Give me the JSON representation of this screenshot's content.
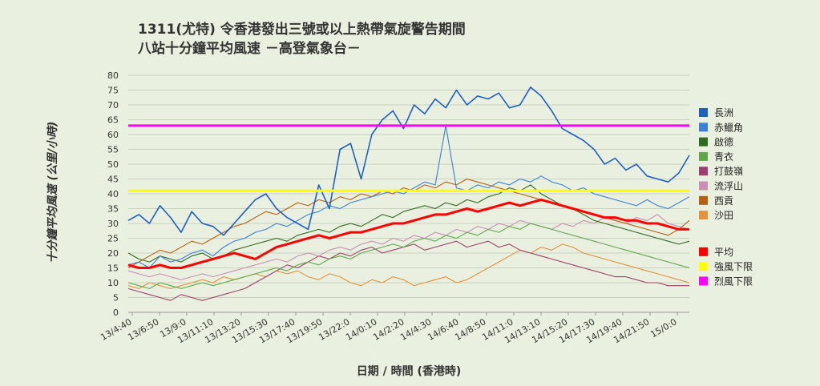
{
  "chart_data": {
    "type": "line",
    "title_line1": "1311(尤特)  令香港發出三號或以上熱帶氣旋警告期間",
    "title_line2": "八站十分鐘平均風速        －高登氣象台－",
    "xlabel": "日期 / 時間 (香港時)",
    "ylabel": "十分鐘平均風速 (公里/小時)",
    "ylim": [
      0,
      80
    ],
    "yticks": [
      0,
      5,
      10,
      15,
      20,
      25,
      30,
      35,
      40,
      45,
      50,
      55,
      60,
      65,
      70,
      75,
      80
    ],
    "grid": true,
    "legend_position": "right",
    "x_tick_labels": [
      "13/4:40",
      "13/6:50",
      "13/9:0",
      "13/11:10",
      "13/13:20",
      "13/15:30",
      "13/17:40",
      "13/19:50",
      "13/22:0",
      "14/0:10",
      "14/2:20",
      "14/4:30",
      "14/6:40",
      "14/8:50",
      "14/11:0",
      "14/13:10",
      "14/15:20",
      "14/17:30",
      "14/19:40",
      "14/21:50",
      "15/0:0"
    ],
    "series": [
      {
        "name": "長洲",
        "color": "#1f5fc4",
        "width": 1.6,
        "values": [
          31,
          33,
          30,
          36,
          32,
          27,
          34,
          30,
          29,
          26,
          30,
          34,
          38,
          40,
          35,
          32,
          30,
          28,
          43,
          35,
          55,
          57,
          45,
          60,
          65,
          68,
          62,
          70,
          67,
          72,
          69,
          75,
          70,
          73,
          72,
          74,
          69,
          70,
          76,
          73,
          68,
          62,
          60,
          58,
          55,
          50,
          52,
          48,
          50,
          46,
          45,
          44,
          47,
          53
        ]
      },
      {
        "name": "赤鱲角",
        "color": "#3a7fd8",
        "width": 1.1,
        "values": [
          16,
          17,
          15,
          19,
          17,
          18,
          20,
          21,
          19,
          22,
          24,
          25,
          27,
          28,
          30,
          29,
          31,
          33,
          34,
          36,
          35,
          37,
          38,
          39,
          40,
          41,
          40,
          42,
          44,
          43,
          63,
          42,
          41,
          43,
          42,
          44,
          43,
          45,
          44,
          46,
          44,
          43,
          41,
          42,
          40,
          39,
          38,
          37,
          36,
          38,
          36,
          35,
          37,
          39
        ]
      },
      {
        "name": "啟德",
        "color": "#2e6b1e",
        "width": 1.1,
        "values": [
          20,
          18,
          17,
          19,
          18,
          17,
          19,
          20,
          18,
          19,
          21,
          22,
          23,
          24,
          25,
          24,
          26,
          27,
          28,
          27,
          29,
          30,
          29,
          31,
          33,
          32,
          34,
          35,
          36,
          35,
          37,
          36,
          38,
          37,
          39,
          40,
          42,
          41,
          43,
          40,
          38,
          36,
          35,
          33,
          31,
          30,
          29,
          28,
          27,
          26,
          25,
          24,
          23,
          24
        ]
      },
      {
        "name": "青衣",
        "color": "#5fa84a",
        "width": 1.1,
        "values": [
          10,
          9,
          8,
          10,
          9,
          8,
          9,
          10,
          9,
          10,
          11,
          12,
          13,
          14,
          15,
          14,
          16,
          17,
          16,
          18,
          19,
          18,
          20,
          21,
          22,
          23,
          22,
          24,
          25,
          24,
          26,
          25,
          27,
          26,
          28,
          27,
          29,
          28,
          30,
          29,
          28,
          27,
          26,
          25,
          24,
          23,
          22,
          21,
          20,
          19,
          18,
          17,
          16,
          15
        ]
      },
      {
        "name": "打鼓嶺",
        "color": "#9c3f6e",
        "width": 1.1,
        "values": [
          8,
          7,
          6,
          5,
          4,
          6,
          5,
          4,
          5,
          6,
          7,
          8,
          10,
          12,
          14,
          16,
          15,
          17,
          19,
          18,
          20,
          19,
          21,
          22,
          20,
          21,
          22,
          23,
          21,
          22,
          23,
          24,
          22,
          23,
          24,
          22,
          23,
          21,
          20,
          19,
          18,
          17,
          16,
          15,
          14,
          13,
          12,
          12,
          11,
          10,
          10,
          9,
          9,
          9
        ]
      },
      {
        "name": "流浮山",
        "color": "#c98fb6",
        "width": 1.1,
        "values": [
          14,
          13,
          12,
          13,
          12,
          11,
          12,
          13,
          12,
          13,
          14,
          15,
          16,
          17,
          18,
          17,
          19,
          20,
          19,
          21,
          22,
          21,
          23,
          24,
          23,
          25,
          24,
          26,
          25,
          27,
          26,
          28,
          27,
          29,
          28,
          30,
          29,
          31,
          30,
          29,
          28,
          30,
          29,
          31,
          30,
          32,
          31,
          30,
          32,
          31,
          33,
          30,
          29,
          28
        ]
      },
      {
        "name": "西貢",
        "color": "#b56010",
        "width": 1.1,
        "values": [
          15,
          17,
          19,
          21,
          20,
          22,
          24,
          23,
          25,
          27,
          29,
          30,
          32,
          34,
          33,
          35,
          37,
          36,
          38,
          37,
          39,
          38,
          40,
          39,
          41,
          40,
          42,
          41,
          43,
          42,
          44,
          43,
          45,
          44,
          43,
          42,
          41,
          40,
          39,
          38,
          37,
          36,
          35,
          34,
          33,
          32,
          31,
          30,
          29,
          28,
          27,
          26,
          28,
          31
        ]
      },
      {
        "name": "沙田",
        "color": "#e7913a",
        "width": 1.1,
        "values": [
          9,
          8,
          10,
          9,
          8,
          9,
          10,
          11,
          10,
          12,
          11,
          12,
          13,
          12,
          14,
          13,
          14,
          12,
          11,
          13,
          12,
          10,
          9,
          11,
          10,
          12,
          11,
          9,
          10,
          11,
          12,
          10,
          11,
          13,
          15,
          17,
          19,
          21,
          20,
          22,
          21,
          23,
          22,
          20,
          19,
          18,
          17,
          16,
          15,
          14,
          13,
          12,
          11,
          10
        ]
      },
      {
        "name": "平均",
        "color": "#ff0000",
        "width": 3,
        "values": [
          16,
          15,
          15,
          16,
          15,
          15,
          16,
          17,
          18,
          19,
          20,
          19,
          18,
          20,
          22,
          23,
          24,
          25,
          26,
          25,
          26,
          27,
          27,
          28,
          29,
          30,
          30,
          31,
          32,
          33,
          33,
          34,
          35,
          34,
          35,
          36,
          37,
          36,
          37,
          38,
          37,
          36,
          35,
          34,
          33,
          32,
          32,
          31,
          31,
          30,
          30,
          29,
          28,
          28
        ]
      },
      {
        "name": "強風下限",
        "color": "#ffff00",
        "width": 3,
        "values": [
          41,
          41
        ]
      },
      {
        "name": "烈風下限",
        "color": "#ff00ff",
        "width": 3,
        "values": [
          63,
          63
        ]
      }
    ]
  }
}
